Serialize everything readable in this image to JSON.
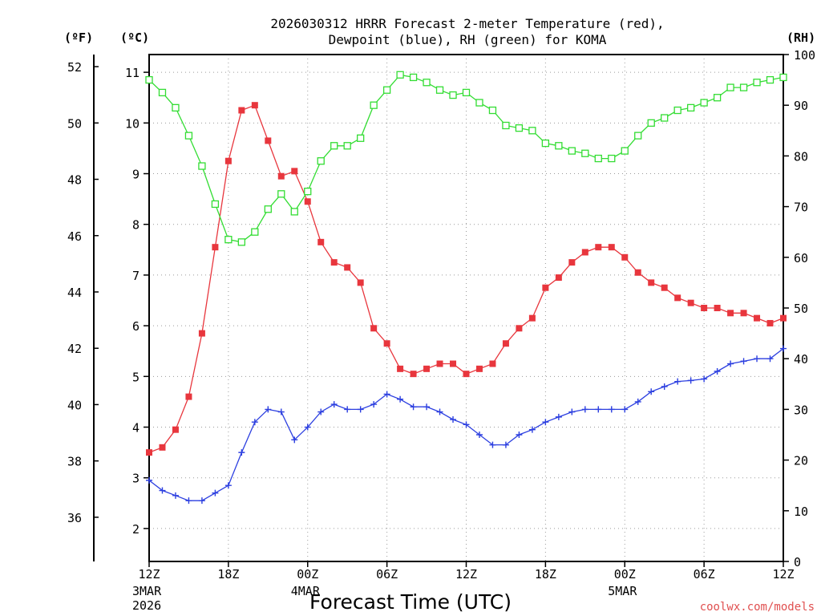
{
  "chart_data": {
    "type": "line",
    "title_line1": "2026030312 HRRR Forecast 2-meter Temperature (red),",
    "title_line2": "Dewpoint (blue), RH (green) for KOMA",
    "xlabel": "Forecast Time (UTC)",
    "credit": "coolwx.com/models",
    "unit_f": "(ºF)",
    "unit_c": "(ºC)",
    "unit_rh": "(RH)",
    "x_range": [
      0,
      48
    ],
    "c_range": [
      1.35,
      11.35
    ],
    "f_range": [
      34.43,
      52.43
    ],
    "rh_range": [
      0,
      100
    ],
    "grid": true,
    "celsius_ticks": [
      "2",
      "3",
      "4",
      "5",
      "6",
      "7",
      "8",
      "9",
      "10",
      "11"
    ],
    "fahrenheit_ticks": [
      "36",
      "38",
      "40",
      "42",
      "44",
      "46",
      "48",
      "50",
      "52"
    ],
    "rh_ticks": [
      "0",
      "10",
      "20",
      "30",
      "40",
      "50",
      "60",
      "70",
      "80",
      "90",
      "100"
    ],
    "x_ticks": [
      {
        "hour": 0,
        "label": "12Z",
        "sub1": "3MAR",
        "sub2": "2026"
      },
      {
        "hour": 6,
        "label": "18Z",
        "sub1": "",
        "sub2": ""
      },
      {
        "hour": 12,
        "label": "00Z",
        "sub1": "4MAR",
        "sub2": ""
      },
      {
        "hour": 18,
        "label": "06Z",
        "sub1": "",
        "sub2": ""
      },
      {
        "hour": 24,
        "label": "12Z",
        "sub1": "",
        "sub2": ""
      },
      {
        "hour": 30,
        "label": "18Z",
        "sub1": "",
        "sub2": ""
      },
      {
        "hour": 36,
        "label": "00Z",
        "sub1": "5MAR",
        "sub2": ""
      },
      {
        "hour": 42,
        "label": "06Z",
        "sub1": "",
        "sub2": ""
      },
      {
        "hour": 48,
        "label": "12Z",
        "sub1": "",
        "sub2": ""
      }
    ],
    "series": [
      {
        "name": "2-meter Temperature",
        "axis": "celsius",
        "color": "#e8363d",
        "marker": "filled-square",
        "values": [
          3.5,
          3.6,
          3.95,
          4.6,
          5.85,
          7.55,
          9.25,
          10.25,
          10.35,
          9.65,
          8.95,
          9.05,
          8.45,
          7.65,
          7.25,
          7.15,
          6.85,
          5.95,
          5.65,
          5.15,
          5.05,
          5.15,
          5.25,
          5.25,
          5.05,
          5.15,
          5.25,
          5.65,
          5.95,
          6.15,
          6.75,
          6.95,
          7.25,
          7.45,
          7.55,
          7.55,
          7.35,
          7.05,
          6.85,
          6.75,
          6.55,
          6.45,
          6.35,
          6.35,
          6.25,
          6.25,
          6.15,
          6.05,
          6.15
        ]
      },
      {
        "name": "Dewpoint",
        "axis": "celsius",
        "color": "#2c3fe0",
        "marker": "plus",
        "values": [
          2.95,
          2.75,
          2.65,
          2.55,
          2.55,
          2.7,
          2.85,
          3.5,
          4.1,
          4.35,
          4.3,
          3.75,
          4.0,
          4.3,
          4.45,
          4.35,
          4.35,
          4.45,
          4.65,
          4.55,
          4.4,
          4.4,
          4.3,
          4.15,
          4.05,
          3.85,
          3.65,
          3.65,
          3.85,
          3.95,
          4.1,
          4.2,
          4.3,
          4.35,
          4.35,
          4.35,
          4.35,
          4.5,
          4.7,
          4.8,
          4.9,
          4.92,
          4.95,
          5.1,
          5.25,
          5.3,
          5.35,
          5.35,
          5.55
        ]
      },
      {
        "name": "RH",
        "axis": "rh",
        "color": "#33dd33",
        "marker": "open-square",
        "values": [
          95,
          92.5,
          89.5,
          84,
          78,
          70.5,
          63.5,
          63,
          65,
          69.5,
          72.5,
          69,
          73,
          79,
          82,
          82,
          83.5,
          90,
          93,
          96,
          95.5,
          94.5,
          93,
          92,
          92.5,
          90.5,
          89,
          86,
          85.5,
          85,
          82.5,
          82,
          81,
          80.5,
          79.5,
          79.5,
          81,
          84,
          86.5,
          87.5,
          89,
          89.5,
          90.5,
          91.5,
          93.5,
          93.5,
          94.5,
          95,
          95.5
        ]
      }
    ]
  }
}
